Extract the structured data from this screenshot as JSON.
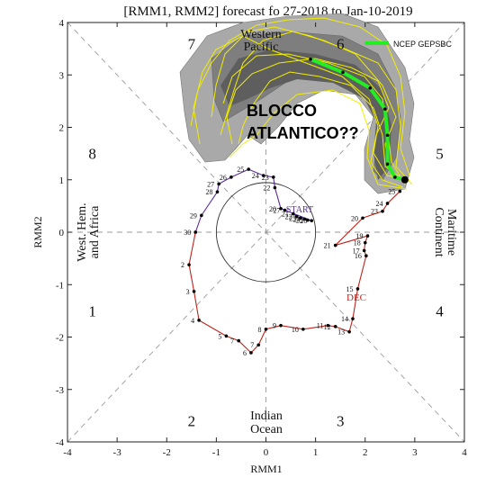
{
  "chart_data": {
    "type": "line",
    "title": "[RMM1, RMM2] forecast fo      27-2018 to Jan-10-2019",
    "xlabel": "RMM1",
    "ylabel": "RMM2",
    "xlim": [
      -4,
      4
    ],
    "ylim": [
      -4,
      4
    ],
    "xticks": [
      -4,
      -3,
      -2,
      -1,
      0,
      1,
      2,
      3,
      4
    ],
    "yticks": [
      -4,
      -3,
      -2,
      -1,
      0,
      1,
      2,
      3,
      4
    ],
    "phase_labels": [
      {
        "text": "1",
        "x": -3.5,
        "y": -1.5
      },
      {
        "text": "2",
        "x": -1.5,
        "y": -3.6
      },
      {
        "text": "3",
        "x": 1.5,
        "y": -3.6
      },
      {
        "text": "4",
        "x": 3.5,
        "y": -1.5
      },
      {
        "text": "5",
        "x": 3.5,
        "y": 1.5
      },
      {
        "text": "6",
        "x": 1.5,
        "y": 3.6
      },
      {
        "text": "7",
        "x": -1.5,
        "y": 3.6
      },
      {
        "text": "8",
        "x": -3.5,
        "y": 1.5
      }
    ],
    "region_labels": {
      "western_pacific": [
        "Western",
        "Pacific"
      ],
      "maritime_continent": [
        "Maritime",
        "Continent"
      ],
      "indian_ocean": [
        "Indian",
        "Ocean"
      ],
      "west_hem_africa": [
        "West. Hem.",
        "and Africa"
      ]
    },
    "annotations": {
      "start": "START",
      "dec": "DEC",
      "overlay": [
        "BLOCCO",
        "ATLANTICO??"
      ]
    },
    "legend": {
      "label": "NCEP GEPSBC",
      "placement": "top-right",
      "color": "#22ee22"
    },
    "series": [
      {
        "segment": "start-nov",
        "color": "#5a2d9a",
        "points": [
          {
            "x": 0.55,
            "y": 0.35,
            "label": "21"
          },
          {
            "x": 0.62,
            "y": 0.3,
            "label": "22"
          },
          {
            "x": 0.7,
            "y": 0.27,
            "label": "23"
          },
          {
            "x": 0.78,
            "y": 0.25,
            "label": "24"
          },
          {
            "x": 0.84,
            "y": 0.23,
            "label": "25"
          },
          {
            "x": 0.92,
            "y": 0.22,
            "label": "26"
          },
          {
            "x": 0.38,
            "y": 0.42,
            "label": "27"
          },
          {
            "x": 0.3,
            "y": 0.45,
            "label": "20"
          },
          {
            "x": 0.18,
            "y": 0.85,
            "label": "22"
          },
          {
            "x": 0.15,
            "y": 1.05,
            "label": "23"
          },
          {
            "x": -0.05,
            "y": 1.08,
            "label": "24"
          },
          {
            "x": -0.35,
            "y": 1.2,
            "label": "25"
          },
          {
            "x": -0.7,
            "y": 1.05,
            "label": "26"
          },
          {
            "x": -0.95,
            "y": 0.92,
            "label": "27"
          },
          {
            "x": -0.98,
            "y": 0.77,
            "label": "28"
          },
          {
            "x": -1.3,
            "y": 0.32,
            "label": "29"
          },
          {
            "x": -1.42,
            "y": 0.0,
            "label": "30"
          }
        ]
      },
      {
        "segment": "dec",
        "color": "#c0231b",
        "points": [
          {
            "x": -1.42,
            "y": 0.0,
            "label": ""
          },
          {
            "x": -1.55,
            "y": -0.62,
            "label": "2"
          },
          {
            "x": -1.45,
            "y": -1.13,
            "label": "3"
          },
          {
            "x": -1.35,
            "y": -1.68,
            "label": "4"
          },
          {
            "x": -0.8,
            "y": -1.98,
            "label": "5"
          },
          {
            "x": -0.55,
            "y": -2.07,
            "label": "7"
          },
          {
            "x": -0.3,
            "y": -2.3,
            "label": "6"
          },
          {
            "x": -0.15,
            "y": -2.15,
            "label": "7"
          },
          {
            "x": 0.0,
            "y": -1.85,
            "label": "8"
          },
          {
            "x": 0.3,
            "y": -1.78,
            "label": "9"
          },
          {
            "x": 0.75,
            "y": -1.85,
            "label": "10"
          },
          {
            "x": 1.25,
            "y": -1.78,
            "label": "11"
          },
          {
            "x": 1.4,
            "y": -1.8,
            "label": "12"
          },
          {
            "x": 1.68,
            "y": -1.9,
            "label": "13"
          },
          {
            "x": 1.75,
            "y": -1.65,
            "label": "14"
          },
          {
            "x": 1.85,
            "y": -1.08,
            "label": "15"
          },
          {
            "x": 2.02,
            "y": -0.45,
            "label": "16"
          },
          {
            "x": 1.98,
            "y": -0.35,
            "label": "17"
          },
          {
            "x": 2.0,
            "y": -0.2,
            "label": "18"
          },
          {
            "x": 2.05,
            "y": -0.07,
            "label": "19"
          },
          {
            "x": 1.4,
            "y": -0.25,
            "label": "21"
          },
          {
            "x": 1.95,
            "y": 0.27,
            "label": "20"
          },
          {
            "x": 2.35,
            "y": 0.4,
            "label": "23"
          },
          {
            "x": 2.45,
            "y": 0.55,
            "label": "24"
          },
          {
            "x": 2.7,
            "y": 0.78,
            "label": "25"
          }
        ]
      },
      {
        "segment": "ensemble-mean",
        "color": "#22ee22",
        "points": [
          {
            "x": 2.8,
            "y": 1.0
          },
          {
            "x": 2.6,
            "y": 1.05
          },
          {
            "x": 2.45,
            "y": 1.3
          },
          {
            "x": 2.45,
            "y": 1.85
          },
          {
            "x": 2.4,
            "y": 2.35
          },
          {
            "x": 2.1,
            "y": 2.75
          },
          {
            "x": 1.55,
            "y": 3.05
          },
          {
            "x": 0.9,
            "y": 3.3
          }
        ]
      }
    ]
  }
}
